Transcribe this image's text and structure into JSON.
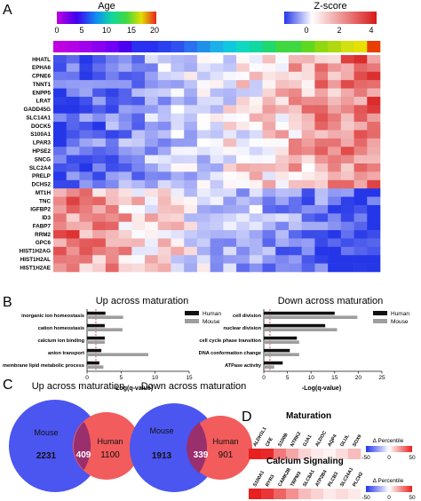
{
  "panels": {
    "a": "A",
    "b": "B",
    "c": "C",
    "d": "D"
  },
  "panel_a": {
    "age_title": "Age",
    "age_ticks": [
      "0",
      "5",
      "10",
      "15",
      "20"
    ],
    "z_title": "Z-score",
    "z_ticks": [
      "0",
      "2",
      "4"
    ],
    "genes": [
      "HHATL",
      "EPHA6",
      "CPNE6",
      "TNNT1",
      "ENPP5",
      "LRAT",
      "GADD45G",
      "SLC14A1",
      "DOCK5",
      "S100A1",
      "LPAR3",
      "HPSE2",
      "SNCG",
      "SLC2A4",
      "PRELP",
      "DCHS2",
      "MT1H",
      "TNC",
      "IGFBP2",
      "ID3",
      "FABP7",
      "RRM2",
      "GPC6",
      "HIST1H2AG",
      "HIST1H2AL",
      "HIST1H2AE"
    ],
    "sample_age_colors": [
      "#c000e0",
      "#b400e6",
      "#a000ee",
      "#8a00f2",
      "#7000f6",
      "#4b00f0",
      "#2a30f0",
      "#2a30f0",
      "#2a40f0",
      "#3050f0",
      "#2a70f0",
      "#2090e8",
      "#1db0e8",
      "#10c8e0",
      "#10d8c0",
      "#10d8a0",
      "#20d870",
      "#40d840",
      "#40d840",
      "#60d820",
      "#90d810",
      "#b0d810",
      "#d0e010",
      "#e8e000",
      "#e84000"
    ],
    "colors": {
      "z_low": "#2436e8",
      "z_mid": "#ffffff",
      "z_high": "#d81818"
    }
  },
  "panel_b": {
    "left_title": "Up across maturation",
    "right_title": "Down across maturation",
    "legend": [
      "Human",
      "Mouse"
    ],
    "xlabel": "-Log(q-value)",
    "left_ticks": [
      "0",
      "5",
      "10",
      "15"
    ],
    "right_ticks": [
      "0",
      "5",
      "10",
      "15",
      "20",
      "25"
    ],
    "colors": {
      "human": "#111111",
      "mouse": "#9e9e9e",
      "threshold": "#cc2222"
    }
  },
  "panel_c": {
    "up_title": "Up across maturation",
    "down_title": "Down across maturation",
    "up": {
      "mouse_label": "Mouse",
      "mouse_value": "2231",
      "overlap": "409",
      "human_label": "Human",
      "human_value": "1100"
    },
    "down": {
      "mouse_label": "Mouse",
      "mouse_value": "1913",
      "overlap": "339",
      "human_label": "Human",
      "human_value": "901"
    },
    "colors": {
      "mouse": "#4b55f0",
      "human": "#f25c5c",
      "overlap": "#9a2f6e"
    }
  },
  "panel_d": {
    "maturation_title": "Maturation",
    "maturation_genes": [
      "ALDH1L1",
      "CFE",
      "S100B",
      "NTRK2",
      "GJA1",
      "ALDOC",
      "AQP4",
      "GLUL",
      "SOX9"
    ],
    "maturation_cells": [
      50,
      48,
      30,
      20,
      10,
      5,
      3,
      8,
      15
    ],
    "calcium_title": "Calcium Signaling",
    "calcium_genes": [
      "S100A1",
      "RYR3",
      "CAMK2B",
      "TRPM3",
      "SLC8A1",
      "ATP2B4",
      "PLCB3",
      "SLC24A1",
      "PLCH2"
    ],
    "calcium_cells": [
      50,
      45,
      35,
      25,
      15,
      10,
      5,
      8,
      5
    ],
    "legend_title": "Δ Percentile",
    "legend_ticks": [
      "-50",
      "0",
      "50"
    ]
  },
  "chart_data": [
    {
      "type": "bar",
      "title": "Up across maturation",
      "xlabel": "-Log(q-value)",
      "categories": [
        "inorganic ion homeostasis",
        "cation homeostasis",
        "calcium ion binding",
        "anion transport",
        "membrane lipid metabolic process"
      ],
      "xlim": [
        0,
        15
      ],
      "series": [
        {
          "name": "Human",
          "values": [
            2.7,
            2.6,
            2.6,
            2.1,
            1.8
          ]
        },
        {
          "name": "Mouse",
          "values": [
            5.3,
            5.2,
            2.6,
            9.0,
            2.4
          ]
        }
      ]
    },
    {
      "type": "bar",
      "title": "Down across maturation",
      "xlabel": "-Log(q-value)",
      "categories": [
        "cell division",
        "nuclear division",
        "cell cycle phase transition",
        "DNA conformation change",
        "ATPase activity"
      ],
      "xlim": [
        0,
        25
      ],
      "series": [
        {
          "name": "Human",
          "values": [
            15.0,
            13.0,
            7.0,
            5.5,
            4.0
          ]
        },
        {
          "name": "Mouse",
          "values": [
            19.8,
            15.5,
            7.5,
            7.5,
            2.2
          ]
        }
      ]
    }
  ]
}
